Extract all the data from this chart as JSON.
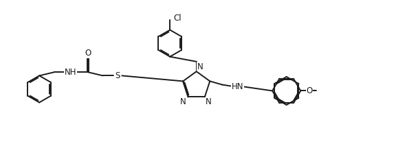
{
  "background_color": "#ffffff",
  "line_color": "#1a1a1a",
  "line_width": 1.4,
  "font_size": 8.5,
  "fig_width": 5.92,
  "fig_height": 2.29,
  "dpi": 100,
  "xlim": [
    0,
    11.5
  ],
  "ylim": [
    0,
    4.3
  ]
}
